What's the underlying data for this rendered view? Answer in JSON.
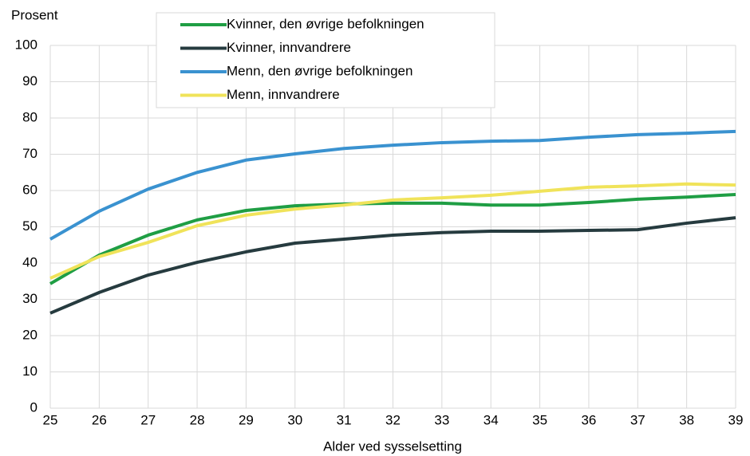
{
  "chart_data": {
    "type": "line",
    "y_unit_label": "Prosent",
    "xlabel": "Alder ved sysselsetting",
    "x": [
      25,
      26,
      27,
      28,
      29,
      30,
      31,
      32,
      33,
      34,
      35,
      36,
      37,
      38,
      39
    ],
    "xlim": [
      25,
      39
    ],
    "xticks": [
      25,
      26,
      27,
      28,
      29,
      30,
      31,
      32,
      33,
      34,
      35,
      36,
      37,
      38,
      39
    ],
    "ylim": [
      0,
      100
    ],
    "yticks": [
      0,
      10,
      20,
      30,
      40,
      50,
      60,
      70,
      80,
      90,
      100
    ],
    "grid": true,
    "legend": "top",
    "series": [
      {
        "name": "Kvinner, den øvrige befolkningen",
        "color": "#1f9e44",
        "values": [
          34.3,
          42.2,
          47.7,
          51.9,
          54.5,
          55.8,
          56.3,
          56.5,
          56.5,
          56,
          56,
          56.7,
          57.6,
          58.2,
          58.9
        ]
      },
      {
        "name": "Kvinner, innvandrere",
        "color": "#263b3f",
        "values": [
          26.2,
          31.9,
          36.7,
          40.2,
          43.1,
          45.5,
          46.6,
          47.7,
          48.4,
          48.8,
          48.8,
          49,
          49.2,
          51,
          52.5
        ]
      },
      {
        "name": "Menn, den øvrige befolkningen",
        "color": "#3a92d0",
        "values": [
          46.6,
          54.3,
          60.4,
          65,
          68.4,
          70.1,
          71.6,
          72.5,
          73.2,
          73.6,
          73.8,
          74.7,
          75.4,
          75.8,
          76.3
        ]
      },
      {
        "name": "Menn, innvandrere",
        "color": "#f0e35a",
        "values": [
          35.8,
          41.8,
          45.7,
          50.3,
          53.2,
          54.9,
          56,
          57.4,
          58,
          58.7,
          59.8,
          60.9,
          61.3,
          61.8,
          61.5
        ]
      }
    ]
  }
}
